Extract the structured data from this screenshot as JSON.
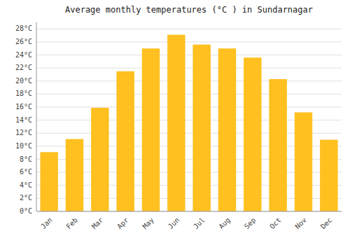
{
  "chart_data": {
    "type": "bar",
    "title": "Average monthly temperatures (°C ) in Sundarnagar",
    "categories": [
      "Jan",
      "Feb",
      "Mar",
      "Apr",
      "May",
      "Jun",
      "Jul",
      "Aug",
      "Sep",
      "Oct",
      "Nov",
      "Dec"
    ],
    "values": [
      9.1,
      11.1,
      15.9,
      21.5,
      25.0,
      27.1,
      25.6,
      25.0,
      23.6,
      20.3,
      15.2,
      11.0
    ],
    "color": "#FFC020",
    "ylim": [
      0,
      29
    ],
    "yticks": [
      {
        "value": 0,
        "label": "0°C"
      },
      {
        "value": 2,
        "label": "2°C"
      },
      {
        "value": 4,
        "label": "4°C"
      },
      {
        "value": 6,
        "label": "6°C"
      },
      {
        "value": 8,
        "label": "8°C"
      },
      {
        "value": 10,
        "label": "10°C"
      },
      {
        "value": 12,
        "label": "12°C"
      },
      {
        "value": 14,
        "label": "14°C"
      },
      {
        "value": 16,
        "label": "16°C"
      },
      {
        "value": 18,
        "label": "18°C"
      },
      {
        "value": 20,
        "label": "20°C"
      },
      {
        "value": 22,
        "label": "22°C"
      },
      {
        "value": 24,
        "label": "24°C"
      },
      {
        "value": 26,
        "label": "26°C"
      },
      {
        "value": 28,
        "label": "28°C"
      }
    ],
    "grid": true
  }
}
